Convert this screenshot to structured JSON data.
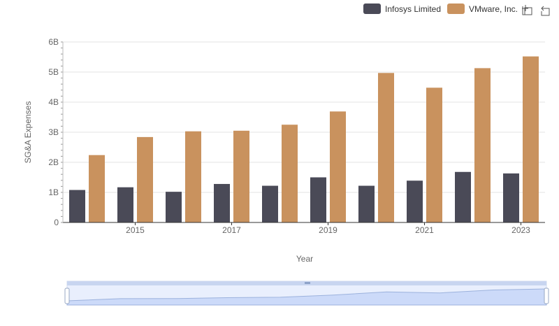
{
  "chart_data": {
    "type": "bar",
    "title": "",
    "xlabel": "Year",
    "ylabel": "SG&A Expenses",
    "years": [
      2014,
      2015,
      2016,
      2017,
      2018,
      2019,
      2020,
      2021,
      2022,
      2023
    ],
    "x_ticks": [
      2015,
      2017,
      2019,
      2021,
      2023
    ],
    "y_ticks": [
      "0",
      "1B",
      "2B",
      "3B",
      "4B",
      "5B",
      "6B"
    ],
    "ylim": [
      0,
      6000000000
    ],
    "grid": true,
    "legend_position": "top-right",
    "series": [
      {
        "name": "Infosys Limited",
        "color": "#4a4a57",
        "values": [
          1080000000,
          1170000000,
          1020000000,
          1280000000,
          1220000000,
          1500000000,
          1220000000,
          1390000000,
          1680000000,
          1630000000
        ]
      },
      {
        "name": "VMware, Inc.",
        "color": "#c9925e",
        "values": [
          2240000000,
          2840000000,
          3030000000,
          3050000000,
          3250000000,
          3690000000,
          4970000000,
          4480000000,
          5130000000,
          5520000000
        ]
      }
    ]
  },
  "toolbar": {
    "zoom_icon": "zoom-select-icon",
    "restore_icon": "restore-icon"
  }
}
